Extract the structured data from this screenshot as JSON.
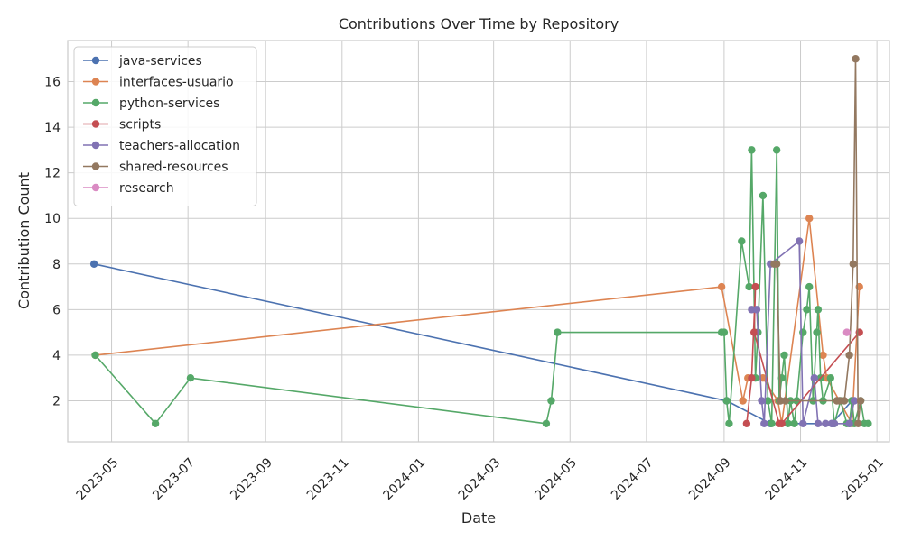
{
  "chart_data": {
    "type": "line",
    "title": "Contributions Over Time by Repository",
    "xlabel": "Date",
    "ylabel": "Contribution Count",
    "x_axis": "date",
    "xlim": [
      "2023-03-27",
      "2025-01-11"
    ],
    "ylim": [
      0.2,
      17.8
    ],
    "x_ticks": [
      "2023-05-01",
      "2023-07-01",
      "2023-09-01",
      "2023-11-01",
      "2024-01-01",
      "2024-03-01",
      "2024-05-01",
      "2024-07-01",
      "2024-09-01",
      "2024-11-01",
      "2025-01-01"
    ],
    "x_tick_labels": [
      "2023-05",
      "2023-07",
      "2023-09",
      "2023-11",
      "2024-01",
      "2024-03",
      "2024-05",
      "2024-07",
      "2024-09",
      "2024-11",
      "2025-01"
    ],
    "y_ticks": [
      2,
      4,
      6,
      8,
      10,
      12,
      14,
      16
    ],
    "grid": true,
    "legend_position": "top-left",
    "series": [
      {
        "name": "java-services",
        "color": "#4c72b0",
        "points": [
          [
            "2023-04-17",
            8
          ],
          [
            "2024-09-03",
            2
          ],
          [
            "2024-10-08",
            1
          ],
          [
            "2024-11-26",
            1
          ],
          [
            "2024-12-12",
            2
          ]
        ]
      },
      {
        "name": "interfaces-usuario",
        "color": "#dd8452",
        "points": [
          [
            "2023-04-18",
            4
          ],
          [
            "2024-08-30",
            7
          ],
          [
            "2024-09-16",
            2
          ],
          [
            "2024-09-20",
            3
          ],
          [
            "2024-10-02",
            3
          ],
          [
            "2024-10-14",
            2
          ],
          [
            "2024-10-17",
            1
          ],
          [
            "2024-11-08",
            10
          ],
          [
            "2024-11-19",
            4
          ],
          [
            "2024-11-22",
            3
          ],
          [
            "2024-12-12",
            1
          ],
          [
            "2024-12-18",
            7
          ]
        ]
      },
      {
        "name": "python-services",
        "color": "#55a868",
        "points": [
          [
            "2023-04-18",
            4
          ],
          [
            "2023-06-05",
            1
          ],
          [
            "2023-07-03",
            3
          ],
          [
            "2024-04-12",
            1
          ],
          [
            "2024-04-16",
            2
          ],
          [
            "2024-04-21",
            5
          ],
          [
            "2024-08-30",
            5
          ],
          [
            "2024-09-01",
            5
          ],
          [
            "2024-09-03",
            2
          ],
          [
            "2024-09-05",
            1
          ],
          [
            "2024-09-15",
            9
          ],
          [
            "2024-09-21",
            7
          ],
          [
            "2024-09-23",
            13
          ],
          [
            "2024-09-26",
            3
          ],
          [
            "2024-09-28",
            5
          ],
          [
            "2024-10-02",
            11
          ],
          [
            "2024-10-06",
            2
          ],
          [
            "2024-10-09",
            1
          ],
          [
            "2024-10-13",
            13
          ],
          [
            "2024-10-15",
            2
          ],
          [
            "2024-10-17",
            3
          ],
          [
            "2024-10-19",
            4
          ],
          [
            "2024-10-22",
            1
          ],
          [
            "2024-10-24",
            2
          ],
          [
            "2024-10-27",
            1
          ],
          [
            "2024-10-29",
            2
          ],
          [
            "2024-11-03",
            5
          ],
          [
            "2024-11-06",
            6
          ],
          [
            "2024-11-08",
            7
          ],
          [
            "2024-11-11",
            2
          ],
          [
            "2024-11-14",
            5
          ],
          [
            "2024-11-15",
            6
          ],
          [
            "2024-11-17",
            3
          ],
          [
            "2024-11-19",
            2
          ],
          [
            "2024-11-25",
            3
          ],
          [
            "2024-11-28",
            1
          ],
          [
            "2024-12-03",
            2
          ],
          [
            "2024-12-08",
            1
          ],
          [
            "2024-12-10",
            1
          ],
          [
            "2024-12-12",
            2
          ],
          [
            "2024-12-14",
            1
          ],
          [
            "2024-12-19",
            2
          ],
          [
            "2024-12-22",
            1
          ],
          [
            "2024-12-25",
            1
          ]
        ]
      },
      {
        "name": "scripts",
        "color": "#c44e52",
        "points": [
          [
            "2024-09-19",
            1
          ],
          [
            "2024-09-23",
            3
          ],
          [
            "2024-09-26",
            7
          ],
          [
            "2024-09-25",
            5
          ],
          [
            "2024-10-15",
            1
          ],
          [
            "2024-10-17",
            1
          ],
          [
            "2024-12-18",
            5
          ]
        ]
      },
      {
        "name": "teachers-allocation",
        "color": "#8172b3",
        "points": [
          [
            "2024-09-23",
            6
          ],
          [
            "2024-09-27",
            6
          ],
          [
            "2024-10-01",
            2
          ],
          [
            "2024-10-03",
            1
          ],
          [
            "2024-10-08",
            8
          ],
          [
            "2024-10-31",
            9
          ],
          [
            "2024-11-03",
            1
          ],
          [
            "2024-11-12",
            3
          ],
          [
            "2024-11-15",
            1
          ],
          [
            "2024-11-21",
            1
          ],
          [
            "2024-11-26",
            1
          ],
          [
            "2024-11-28",
            1
          ],
          [
            "2024-12-10",
            1
          ],
          [
            "2024-12-14",
            2
          ]
        ]
      },
      {
        "name": "shared-resources",
        "color": "#937860",
        "points": [
          [
            "2024-10-11",
            8
          ],
          [
            "2024-10-13",
            8
          ],
          [
            "2024-10-16",
            2
          ],
          [
            "2024-10-20",
            2
          ],
          [
            "2024-11-30",
            2
          ],
          [
            "2024-12-02",
            2
          ],
          [
            "2024-12-06",
            2
          ],
          [
            "2024-12-10",
            4
          ],
          [
            "2024-12-13",
            8
          ],
          [
            "2024-12-15",
            17
          ],
          [
            "2024-12-17",
            1
          ],
          [
            "2024-12-19",
            2
          ]
        ]
      },
      {
        "name": "research",
        "color": "#da8bc3",
        "points": [
          [
            "2024-12-08",
            5
          ]
        ]
      }
    ]
  }
}
